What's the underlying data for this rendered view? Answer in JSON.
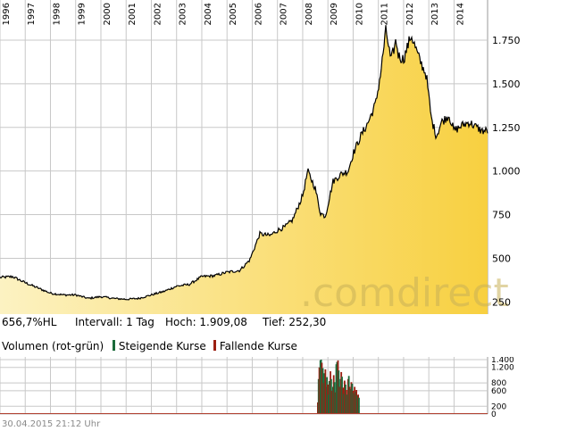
{
  "colors": {
    "price_line": "#000000",
    "area_top": "#f8d040",
    "area_bottom": "#fcf2c2",
    "grid": "#c8c8c8",
    "rising": "#1a6a3a",
    "falling": "#9c1f12",
    "watermark": "#c8b058"
  },
  "watermark": ".comdirect",
  "info_bar": {
    "change": "656,7%HL",
    "interval": "Intervall: 1 Tag",
    "high": "Hoch:  1.909,08",
    "low": "Tief:   252,30"
  },
  "legend": {
    "title": "Volumen (rot-grün)",
    "rising": "Steigende Kurse",
    "falling": "Fallende Kurse"
  },
  "footer": "30.04.2015 21:12 Uhr",
  "chart_data": [
    {
      "type": "area",
      "x_labels": [
        "1996",
        "1997",
        "1998",
        "1999",
        "2000",
        "2001",
        "2002",
        "2003",
        "2004",
        "2005",
        "2006",
        "2007",
        "2008",
        "2009",
        "2010",
        "2011",
        "2012",
        "2013",
        "2014"
      ],
      "y_ticks": [
        250,
        500,
        750,
        1000,
        1250,
        1500,
        1750
      ],
      "y_tick_labels": [
        "250",
        "500",
        "750",
        "1.000",
        "1.250",
        "1.500",
        "1.750"
      ],
      "ylim": [
        180,
        1960
      ],
      "xlim": [
        1996.0,
        2015.33
      ],
      "grid": true,
      "x": [
        1996.0,
        1996.5,
        1997.0,
        1997.5,
        1998.0,
        1998.5,
        1999.0,
        1999.5,
        2000.0,
        2000.5,
        2001.0,
        2001.5,
        2002.0,
        2002.5,
        2003.0,
        2003.5,
        2004.0,
        2004.5,
        2005.0,
        2005.5,
        2005.9,
        2006.3,
        2006.7,
        2007.0,
        2007.3,
        2007.6,
        2008.0,
        2008.2,
        2008.5,
        2008.7,
        2008.9,
        2009.2,
        2009.5,
        2009.8,
        2010.0,
        2010.3,
        2010.6,
        2010.9,
        2011.1,
        2011.3,
        2011.5,
        2011.7,
        2011.8,
        2012.0,
        2012.3,
        2012.6,
        2012.9,
        2013.1,
        2013.3,
        2013.5,
        2013.8,
        2014.0,
        2014.3,
        2014.6,
        2014.9,
        2015.1,
        2015.33
      ],
      "y": [
        390,
        395,
        360,
        330,
        300,
        290,
        290,
        270,
        280,
        270,
        265,
        270,
        290,
        310,
        340,
        350,
        395,
        400,
        420,
        430,
        490,
        640,
        630,
        660,
        680,
        720,
        860,
        1000,
        900,
        760,
        740,
        940,
        980,
        1000,
        1100,
        1200,
        1280,
        1390,
        1570,
        1810,
        1630,
        1750,
        1660,
        1640,
        1780,
        1650,
        1550,
        1300,
        1200,
        1280,
        1320,
        1230,
        1260,
        1280,
        1250,
        1230,
        1230
      ]
    },
    {
      "type": "bar",
      "title": "Volumen (rot-grün)",
      "y_ticks": [
        0,
        200,
        600,
        800,
        1200,
        1400
      ],
      "y_tick_labels": [
        "0",
        "200",
        "600",
        "800",
        "1.200",
        "1.400"
      ],
      "ylim": [
        0,
        1400
      ],
      "x": [
        2008.6,
        2008.63,
        2008.66,
        2008.7,
        2008.73,
        2008.76,
        2008.8,
        2008.83,
        2008.86,
        2008.9,
        2008.93,
        2008.96,
        2009.0,
        2009.03,
        2009.06,
        2009.1,
        2009.13,
        2009.16,
        2009.2,
        2009.23,
        2009.26,
        2009.3,
        2009.33,
        2009.36,
        2009.4,
        2009.43,
        2009.46,
        2009.5,
        2009.53,
        2009.56,
        2009.6,
        2009.63,
        2009.66,
        2009.7,
        2009.73,
        2009.76,
        2009.8,
        2009.83,
        2009.86,
        2009.9,
        2009.93,
        2009.96,
        2010.0,
        2010.03,
        2010.06,
        2010.1,
        2010.13,
        2010.16,
        2010.2,
        2010.23
      ],
      "values": [
        300,
        900,
        1200,
        1380,
        1400,
        1320,
        1180,
        800,
        1050,
        1150,
        700,
        950,
        760,
        500,
        850,
        1100,
        900,
        600,
        700,
        1000,
        820,
        560,
        1280,
        1340,
        1380,
        1120,
        700,
        900,
        1080,
        960,
        680,
        520,
        860,
        760,
        620,
        500,
        900,
        980,
        700,
        640,
        820,
        780,
        600,
        540,
        700,
        580,
        620,
        480,
        500,
        420
      ],
      "direction": [
        "falling",
        "rising",
        "falling",
        "rising",
        "rising",
        "falling",
        "rising",
        "falling",
        "rising",
        "falling",
        "falling",
        "rising",
        "falling",
        "rising",
        "rising",
        "falling",
        "rising",
        "falling",
        "rising",
        "falling",
        "rising",
        "falling",
        "rising",
        "rising",
        "falling",
        "rising",
        "falling",
        "rising",
        "falling",
        "rising",
        "falling",
        "rising",
        "falling",
        "rising",
        "falling",
        "rising",
        "falling",
        "rising",
        "falling",
        "rising",
        "falling",
        "rising",
        "falling",
        "rising",
        "falling",
        "rising",
        "falling",
        "rising",
        "falling",
        "rising"
      ]
    }
  ]
}
